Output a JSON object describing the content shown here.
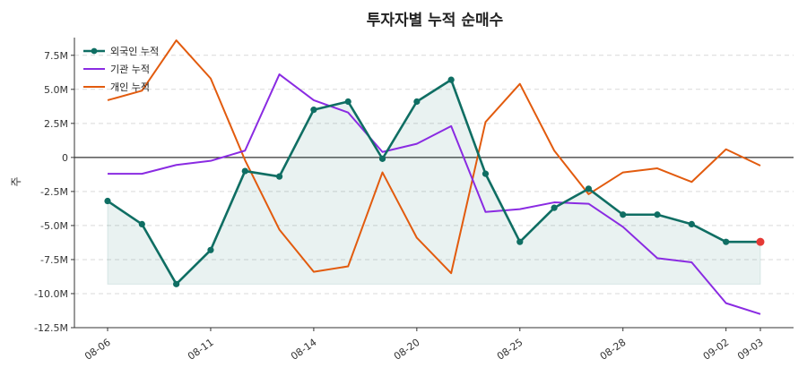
{
  "chart_data": {
    "type": "line",
    "title": "투자자별 누적 순매수",
    "xlabel": "",
    "ylabel": "주",
    "ylim": [
      -12.5,
      8.8
    ],
    "y_unit": "M shares",
    "yticks": [
      7.5,
      5.0,
      2.5,
      0,
      -2.5,
      -5.0,
      -7.5,
      -10.0,
      -12.5
    ],
    "ytick_labels": [
      "7.5M",
      "5.0M",
      "2.5M",
      "0",
      "-2.5M",
      "-5.0M",
      "-7.5M",
      "-10.0M",
      "-12.5M"
    ],
    "x_tick_labels": [
      "08-06",
      "08-11",
      "08-14",
      "08-20",
      "08-25",
      "08-28",
      "09-02",
      "09-03"
    ],
    "x_tick_index": [
      0,
      3,
      6,
      9,
      12,
      15,
      18,
      19
    ],
    "grid": "horizontal dashed",
    "zero_line": true,
    "legend_position": "top-left",
    "fill_band": {
      "series": "외국인 누적",
      "base": -9.3
    },
    "series": [
      {
        "name": "외국인 누적",
        "color": "#0f6e63",
        "markers": true,
        "last_marker_color": "#e53935",
        "values": [
          -3.2,
          -4.9,
          -9.3,
          -6.8,
          -1.0,
          -1.4,
          3.5,
          4.1,
          -0.1,
          4.1,
          5.7,
          -1.2,
          -6.2,
          -3.7,
          -2.3,
          -4.2,
          -4.2,
          -4.9,
          -6.2,
          -6.2
        ]
      },
      {
        "name": "기관 누적",
        "color": "#8a2be2",
        "markers": false,
        "values": [
          -1.2,
          -1.2,
          -0.55,
          -0.25,
          0.5,
          6.1,
          4.2,
          3.3,
          0.4,
          1.0,
          2.3,
          -4.0,
          -3.8,
          -3.3,
          -3.4,
          -5.1,
          -7.4,
          -7.7,
          -10.7,
          -11.5
        ]
      },
      {
        "name": "개인 누적",
        "color": "#e25b0e",
        "markers": false,
        "values": [
          4.2,
          4.9,
          8.6,
          5.8,
          -0.2,
          -5.3,
          -8.4,
          -8.0,
          -1.1,
          -5.9,
          -8.5,
          2.6,
          5.4,
          0.5,
          -2.7,
          -1.1,
          -0.8,
          -1.8,
          0.6,
          -0.6
        ]
      }
    ]
  }
}
